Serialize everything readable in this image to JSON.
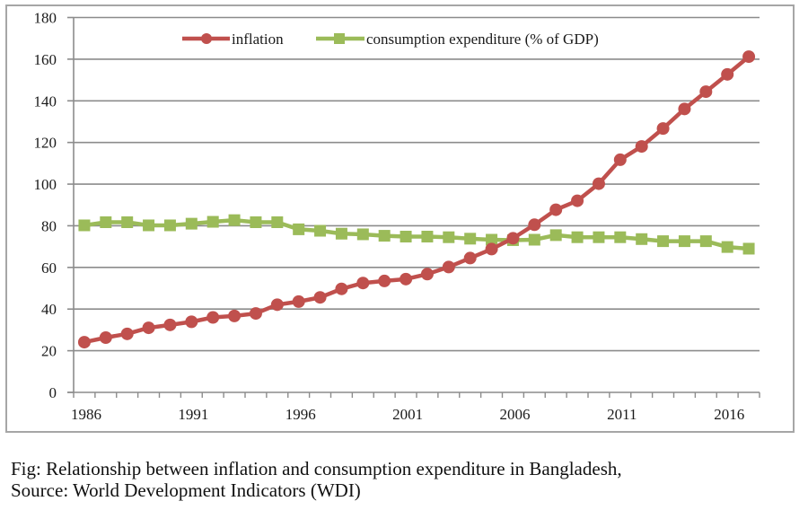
{
  "chart_data": {
    "type": "line",
    "title": "",
    "xlabel": "",
    "ylabel": "",
    "ylim": [
      0,
      180
    ],
    "yticks": [
      0,
      20,
      40,
      60,
      80,
      100,
      120,
      140,
      160,
      180
    ],
    "grid": true,
    "legend_position": "top-center",
    "x": [
      1986,
      1987,
      1988,
      1989,
      1990,
      1991,
      1992,
      1993,
      1994,
      1995,
      1996,
      1997,
      1998,
      1999,
      2000,
      2001,
      2002,
      2003,
      2004,
      2005,
      2006,
      2007,
      2008,
      2009,
      2010,
      2011,
      2012,
      2013,
      2014,
      2015,
      2016,
      2017
    ],
    "xtick_labels": [
      "1986",
      "1991",
      "1996",
      "2001",
      "2006",
      "2011",
      "2016"
    ],
    "series": [
      {
        "name": "inflation",
        "color": "#C0504D",
        "marker": "circle",
        "values": [
          24.1,
          26.3,
          28.1,
          31.0,
          32.4,
          33.9,
          36.0,
          36.7,
          37.9,
          42.1,
          43.6,
          45.6,
          49.7,
          52.5,
          53.5,
          54.4,
          56.8,
          60.2,
          64.5,
          68.8,
          74.0,
          80.5,
          87.7,
          92.0,
          100.2,
          111.7,
          118.1,
          126.7,
          136.1,
          144.4,
          152.7,
          161.2
        ]
      },
      {
        "name": "consumption expenditure (% of GDP)",
        "color": "#9BBB59",
        "marker": "square",
        "values": [
          80.2,
          81.7,
          81.7,
          80.2,
          80.2,
          81.0,
          81.9,
          82.7,
          81.7,
          81.7,
          78.3,
          77.6,
          76.2,
          75.9,
          75.2,
          74.8,
          74.8,
          74.5,
          73.8,
          73.3,
          73.1,
          73.3,
          75.5,
          74.5,
          74.5,
          74.5,
          73.6,
          72.6,
          72.6,
          72.6,
          69.8,
          69.0
        ]
      }
    ]
  },
  "caption": {
    "line1": "Fig: Relationship between inflation and consumption expenditure in Bangladesh,",
    "line2": "Source: World Development Indicators (WDI)"
  }
}
